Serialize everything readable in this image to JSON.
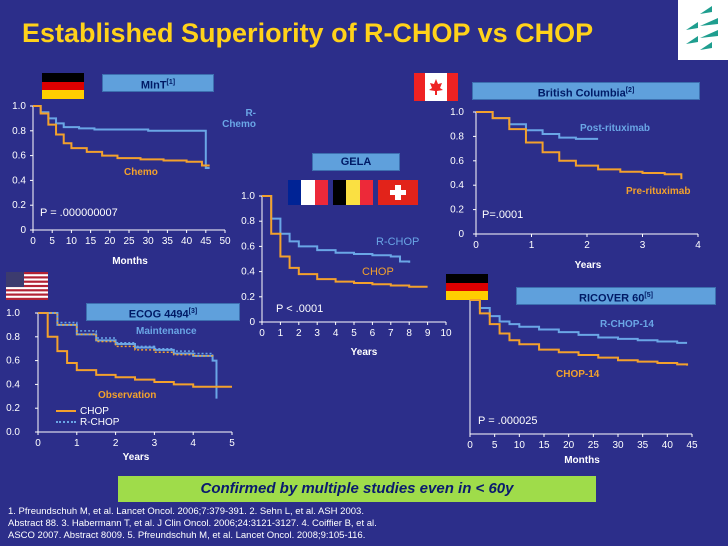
{
  "title": "Established Superiority of R-CHOP vs CHOP",
  "confirm": "Confirmed by multiple studies even in < 60y",
  "references": [
    "1. Pfreundschuh M, et al. Lancet Oncol. 2006;7:379-391. 2. Sehn L, et al. ASH 2003.",
    "Abstract 88. 3. Habermann T, et al. J Clin Oncol. 2006;24:3121-3127. 4. Coiffier B, et al.",
    "ASCO 2007. Abstract 8009. 5. Pfreundschuh M, et al. Lancet Oncol. 2008;9:105-116."
  ],
  "colors": {
    "bg": "#2c2e8a",
    "title": "#ffd21a",
    "rchop": "#6aa6e6",
    "chop": "#f3a12c",
    "banner": "#5fa0dc",
    "confirm": "#9fdc4a"
  },
  "panels": {
    "mint": {
      "banner": "MInT",
      "sup": "[1]",
      "pvalue": "P = .000000007",
      "xlabel": "Months",
      "label_r": "R-\nChemo",
      "label_c": "Chemo"
    },
    "bc": {
      "banner": "British Columbia",
      "sup": "[2]",
      "pvalue": "P=.0001",
      "xlabel": "Years",
      "label_r": "Post-rituximab",
      "label_c": "Pre-rituximab"
    },
    "gela": {
      "banner": "GELA",
      "pvalue": "P < .0001",
      "xlabel": "Years",
      "label_r": "R-CHOP",
      "label_c": "CHOP"
    },
    "ecog": {
      "banner": "ECOG 4494",
      "sup": "[3]",
      "xlabel": "Years",
      "label_m": "Maintenance",
      "label_o": "Observation",
      "legend_c": "CHOP",
      "legend_r": "R-CHOP"
    },
    "ricover": {
      "banner": "RICOVER 60",
      "sup": "[5]",
      "pvalue": "P = .000025",
      "xlabel": "Months",
      "label_r": "R-CHOP-14",
      "label_c": "CHOP-14"
    }
  },
  "chart_data": [
    {
      "type": "line",
      "id": "mint",
      "xlabel": "Months",
      "xlim": [
        0,
        50
      ],
      "ylim": [
        0,
        1
      ],
      "xticks": [
        0,
        5,
        10,
        15,
        20,
        25,
        30,
        35,
        40,
        45,
        50
      ],
      "yticks": [
        0,
        0.2,
        0.4,
        0.6,
        0.8,
        1.0
      ],
      "ytick_labels": [
        "0",
        "0.2",
        "0.4",
        "0.6",
        "0.8",
        "1.0"
      ],
      "series": [
        {
          "name": "R-Chemo",
          "color": "#6aa6e6",
          "x": [
            0,
            2,
            4,
            6,
            8,
            12,
            16,
            20,
            25,
            30,
            35,
            40,
            43,
            45,
            46
          ],
          "y": [
            1.0,
            0.95,
            0.9,
            0.86,
            0.83,
            0.82,
            0.81,
            0.81,
            0.81,
            0.8,
            0.8,
            0.8,
            0.8,
            0.5,
            0.5
          ]
        },
        {
          "name": "Chemo",
          "color": "#f3a12c",
          "x": [
            0,
            2,
            4,
            6,
            8,
            10,
            14,
            18,
            22,
            28,
            34,
            40,
            44,
            46
          ],
          "y": [
            1.0,
            0.94,
            0.85,
            0.77,
            0.7,
            0.66,
            0.63,
            0.6,
            0.58,
            0.57,
            0.56,
            0.55,
            0.52,
            0.52
          ]
        }
      ]
    },
    {
      "type": "line",
      "id": "bc",
      "xlabel": "Years",
      "xlim": [
        0,
        4
      ],
      "ylim": [
        0,
        1
      ],
      "xticks": [
        0,
        1,
        2,
        3,
        4
      ],
      "yticks": [
        0,
        0.2,
        0.4,
        0.6,
        0.8,
        1.0
      ],
      "ytick_labels": [
        "0",
        "0.2",
        "0.4",
        "0.6",
        "0.8",
        "1.0"
      ],
      "series": [
        {
          "name": "Post-rituximab",
          "color": "#6aa6e6",
          "x": [
            0,
            0.3,
            0.6,
            0.9,
            1.2,
            1.5,
            1.8,
            2.2
          ],
          "y": [
            1.0,
            0.95,
            0.9,
            0.85,
            0.82,
            0.79,
            0.78,
            0.78
          ]
        },
        {
          "name": "Pre-rituximab",
          "color": "#f3a12c",
          "x": [
            0,
            0.3,
            0.6,
            0.9,
            1.2,
            1.5,
            1.8,
            2.2,
            2.6,
            3.0,
            3.4,
            3.7
          ],
          "y": [
            1.0,
            0.95,
            0.86,
            0.75,
            0.67,
            0.6,
            0.56,
            0.53,
            0.51,
            0.5,
            0.49,
            0.45
          ]
        }
      ]
    },
    {
      "type": "line",
      "id": "gela",
      "xlabel": "Years",
      "xlim": [
        0,
        10
      ],
      "ylim": [
        0,
        1
      ],
      "xticks": [
        0,
        1,
        2,
        3,
        4,
        5,
        6,
        7,
        8,
        9,
        10
      ],
      "yticks": [
        0,
        0.2,
        0.4,
        0.6,
        0.8,
        1.0
      ],
      "ytick_labels": [
        "0",
        "0.2",
        "0.4",
        "0.6",
        "0.8",
        "1.0"
      ],
      "series": [
        {
          "name": "R-CHOP",
          "color": "#6aa6e6",
          "x": [
            0,
            0.5,
            1,
            1.5,
            2,
            3,
            4,
            5,
            6,
            7,
            7.5,
            8
          ],
          "y": [
            1.0,
            0.82,
            0.7,
            0.64,
            0.6,
            0.57,
            0.55,
            0.54,
            0.53,
            0.52,
            0.48,
            0.47
          ]
        },
        {
          "name": "CHOP",
          "color": "#f3a12c",
          "x": [
            0,
            0.5,
            1,
            1.5,
            2,
            3,
            4,
            5,
            6,
            7,
            8,
            9
          ],
          "y": [
            1.0,
            0.7,
            0.52,
            0.43,
            0.38,
            0.34,
            0.32,
            0.31,
            0.3,
            0.29,
            0.28,
            0.28
          ]
        }
      ]
    },
    {
      "type": "line",
      "id": "ecog",
      "xlabel": "Years",
      "xlim": [
        0,
        5
      ],
      "ylim": [
        0,
        1
      ],
      "xticks": [
        0,
        1,
        2,
        3,
        4,
        5
      ],
      "yticks": [
        0,
        0.2,
        0.4,
        0.6,
        0.8,
        1.0
      ],
      "ytick_labels": [
        "0.0",
        "0.2",
        "0.4",
        "0.6",
        "0.8",
        "1.0"
      ],
      "series": [
        {
          "name": "Maintenance",
          "color": "#6aa6e6",
          "x": [
            0,
            0.5,
            1,
            1.5,
            2,
            2.5,
            3,
            3.5,
            4,
            4.5,
            4.6
          ],
          "y": [
            1.0,
            0.9,
            0.82,
            0.77,
            0.74,
            0.71,
            0.69,
            0.66,
            0.64,
            0.6,
            0.28
          ]
        },
        {
          "name": "Observation",
          "color": "#f3a12c",
          "x": [
            0,
            0.25,
            0.5,
            0.75,
            1,
            1.5,
            2,
            2.5,
            3,
            3.5,
            4,
            5
          ],
          "y": [
            1.0,
            0.8,
            0.68,
            0.58,
            0.52,
            0.48,
            0.46,
            0.44,
            0.42,
            0.4,
            0.38,
            0.38
          ]
        },
        {
          "name": "R-CHOP",
          "color": "#6aa6e6",
          "dashed": true,
          "x": [
            0,
            0.5,
            1,
            1.5,
            2,
            2.5,
            3,
            3.5,
            4,
            4.5
          ],
          "y": [
            1.0,
            0.92,
            0.85,
            0.79,
            0.75,
            0.72,
            0.7,
            0.68,
            0.66,
            0.64
          ]
        },
        {
          "name": "CHOP",
          "color": "#f3a12c",
          "dashed": true,
          "x": [
            0,
            0.5,
            1,
            1.5,
            2,
            2.5,
            3,
            3.5,
            4,
            4.5
          ],
          "y": [
            1.0,
            0.9,
            0.82,
            0.76,
            0.72,
            0.69,
            0.67,
            0.65,
            0.64,
            0.62
          ]
        }
      ]
    },
    {
      "type": "line",
      "id": "ricover",
      "xlabel": "Months",
      "xlim": [
        0,
        45
      ],
      "ylim": [
        0,
        1
      ],
      "xticks": [
        0,
        5,
        10,
        15,
        20,
        25,
        30,
        35,
        40,
        45
      ],
      "yticks": [],
      "ytick_labels": [],
      "series": [
        {
          "name": "R-CHOP-14",
          "color": "#6aa6e6",
          "x": [
            0,
            2,
            4,
            6,
            8,
            10,
            14,
            18,
            22,
            26,
            30,
            34,
            38,
            42,
            44
          ],
          "y": [
            1.0,
            0.94,
            0.88,
            0.84,
            0.82,
            0.8,
            0.78,
            0.76,
            0.74,
            0.72,
            0.71,
            0.7,
            0.69,
            0.68,
            0.68
          ]
        },
        {
          "name": "CHOP-14",
          "color": "#f3a12c",
          "x": [
            0,
            2,
            4,
            6,
            8,
            10,
            14,
            18,
            22,
            26,
            30,
            34,
            38,
            42,
            44
          ],
          "y": [
            1.0,
            0.9,
            0.82,
            0.75,
            0.7,
            0.67,
            0.63,
            0.61,
            0.59,
            0.57,
            0.55,
            0.54,
            0.53,
            0.52,
            0.51
          ]
        }
      ]
    }
  ]
}
